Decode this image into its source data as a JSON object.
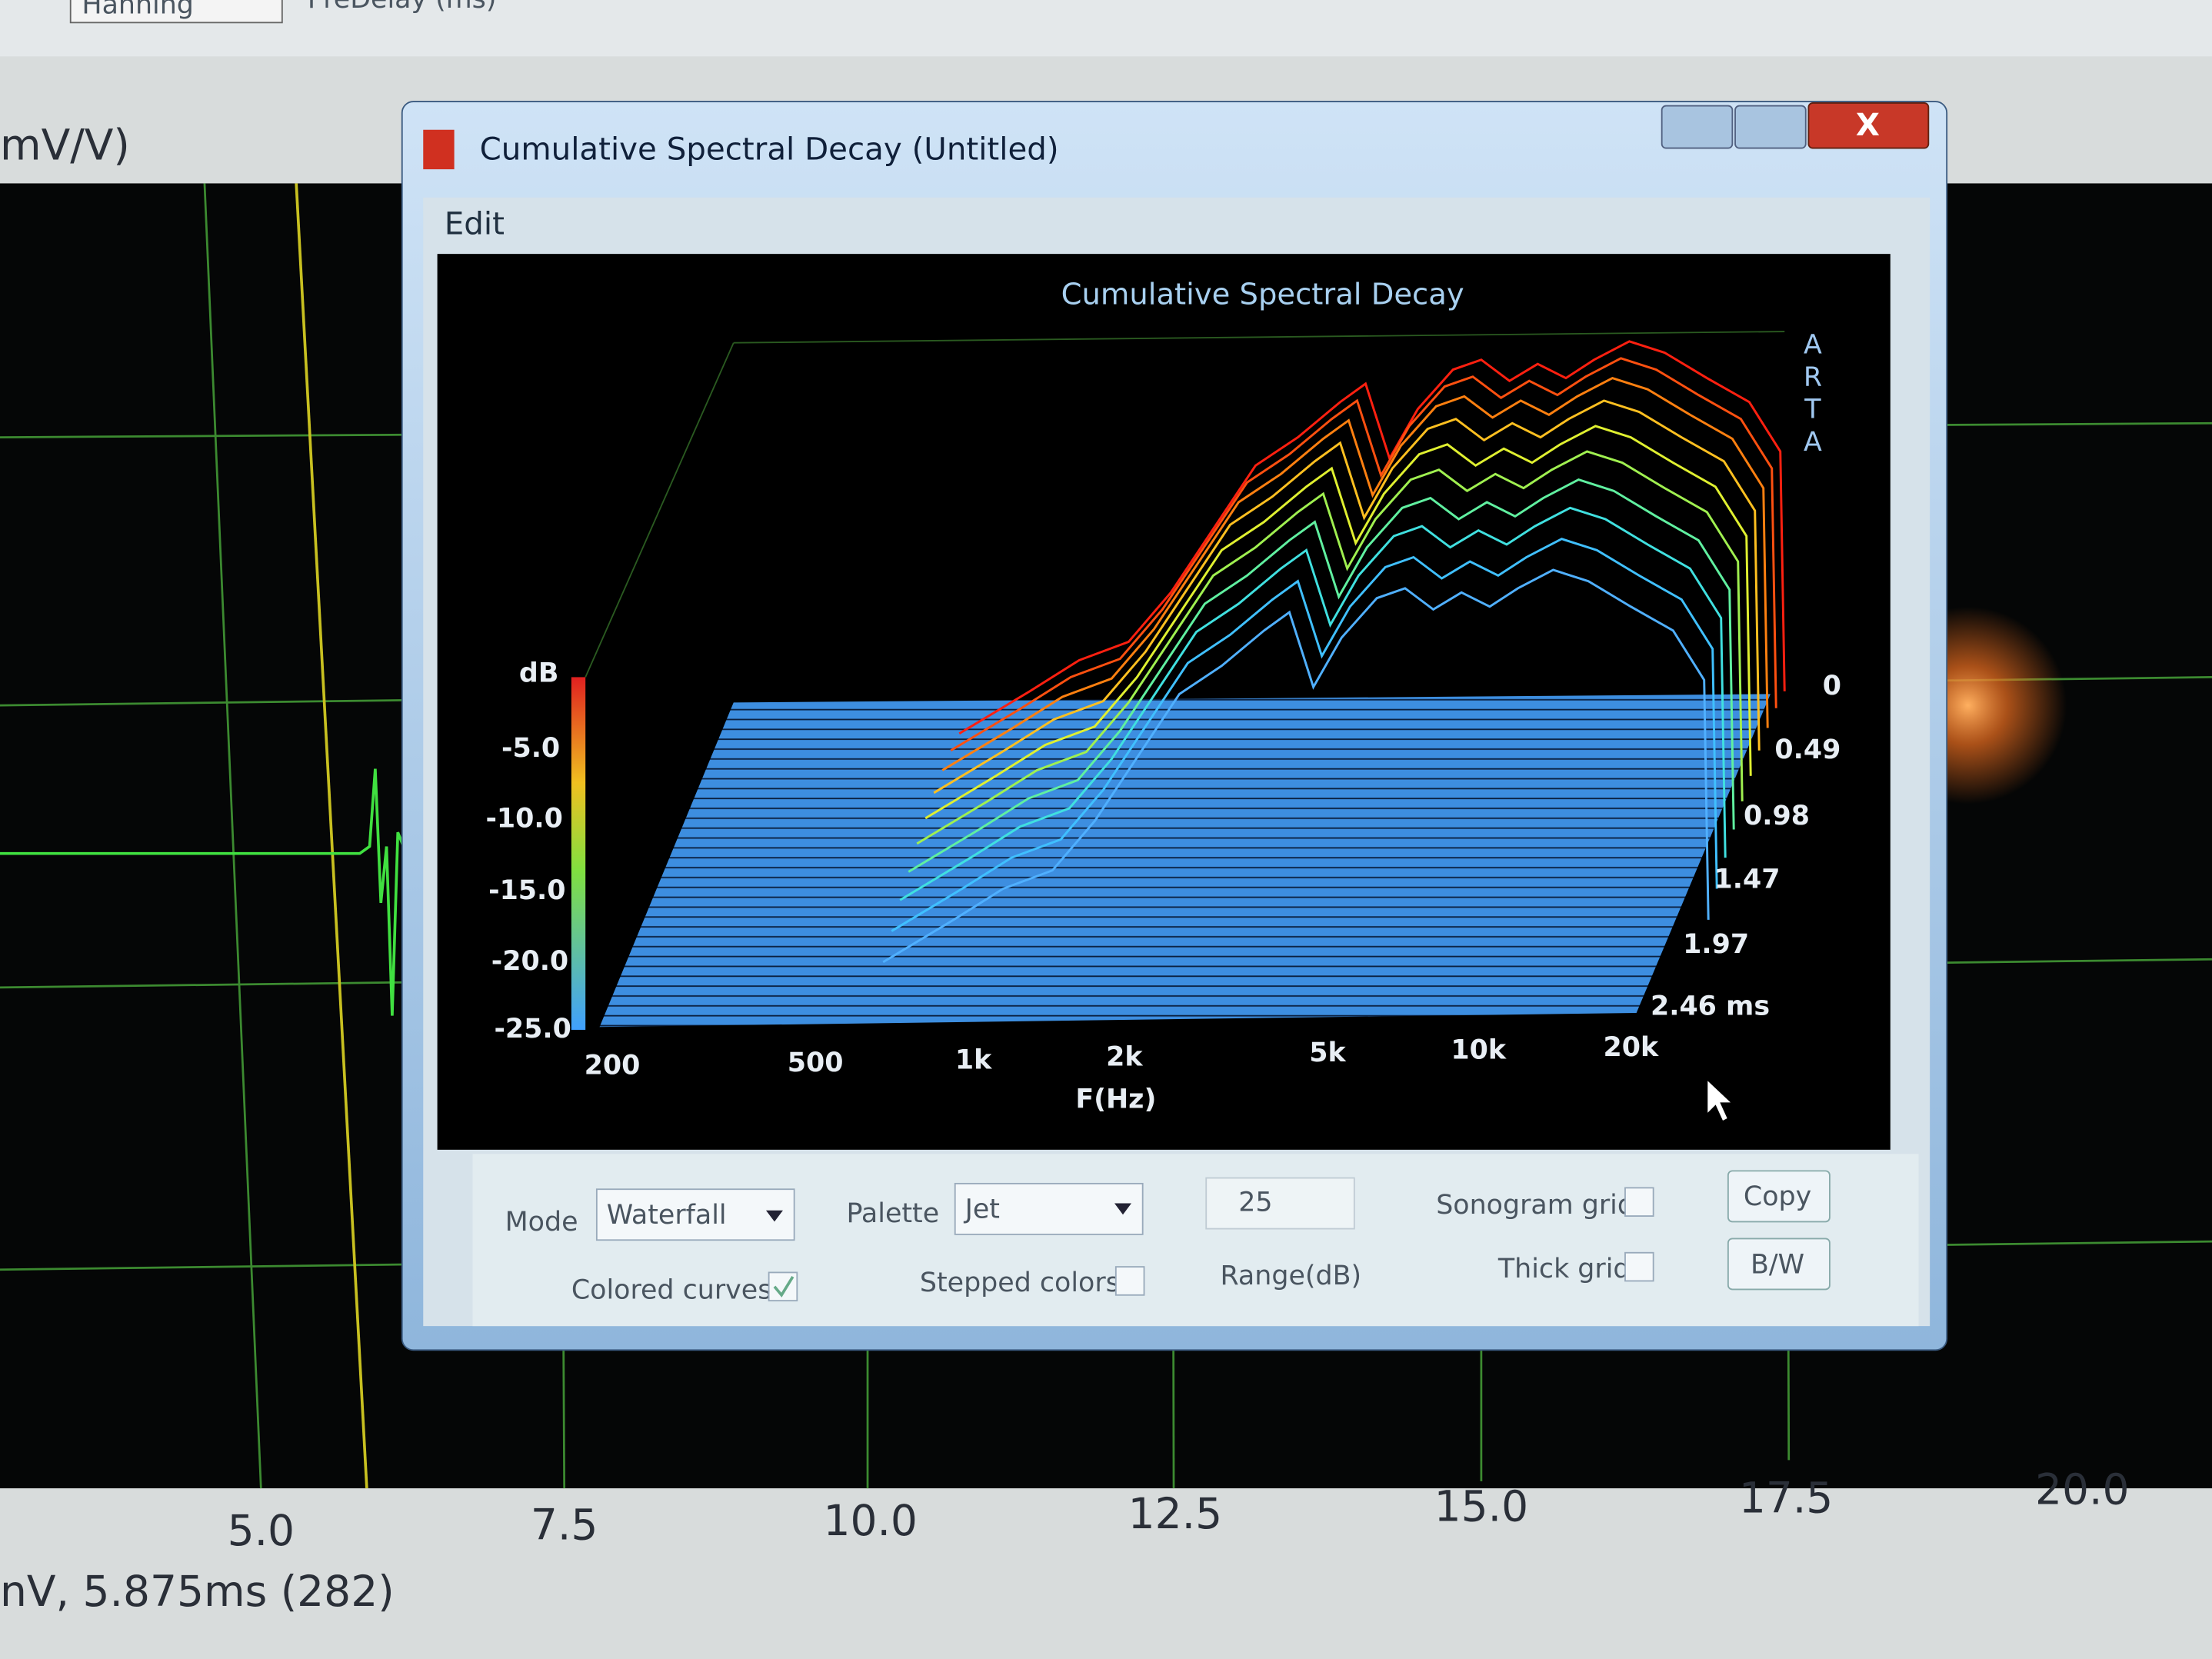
{
  "background": {
    "window_fn": "Hanning",
    "predelay_label": "PreDelay (ms)",
    "y_unit": "mV/V)",
    "x_ticks": [
      "5.0",
      "7.5",
      "10.0",
      "12.5",
      "15.0",
      "17.5",
      "20.0"
    ],
    "status": "nV, 5.875ms (282)"
  },
  "window": {
    "title": "Cumulative Spectral Decay  (Untitled)",
    "menu": [
      "Edit"
    ],
    "plot": {
      "title": "Cumulative Spectral Decay",
      "brand": [
        "A",
        "R",
        "T",
        "A"
      ],
      "z_label": "dB",
      "z_ticks": [
        "-5.0",
        "-10.0",
        "-15.0",
        "-20.0",
        "-25.0"
      ],
      "x_label": "F(Hz)",
      "x_ticks": [
        "200",
        "500",
        "1k",
        "2k",
        "5k",
        "10k",
        "20k"
      ],
      "t_ticks": [
        "0",
        "0.49",
        "0.98",
        "1.47",
        "1.97",
        "2.46 ms"
      ]
    },
    "controls": {
      "mode_label": "Mode",
      "mode": "Waterfall",
      "palette_label": "Palette",
      "palette": "Jet",
      "range": "25",
      "range_label": "Range(dB)",
      "colored_curves": "Colored curves",
      "stepped_colors": "Stepped colors",
      "sonogram_grid": "Sonogram grid",
      "thick_grid": "Thick grid",
      "copy": "Copy",
      "bw": "B/W"
    }
  }
}
